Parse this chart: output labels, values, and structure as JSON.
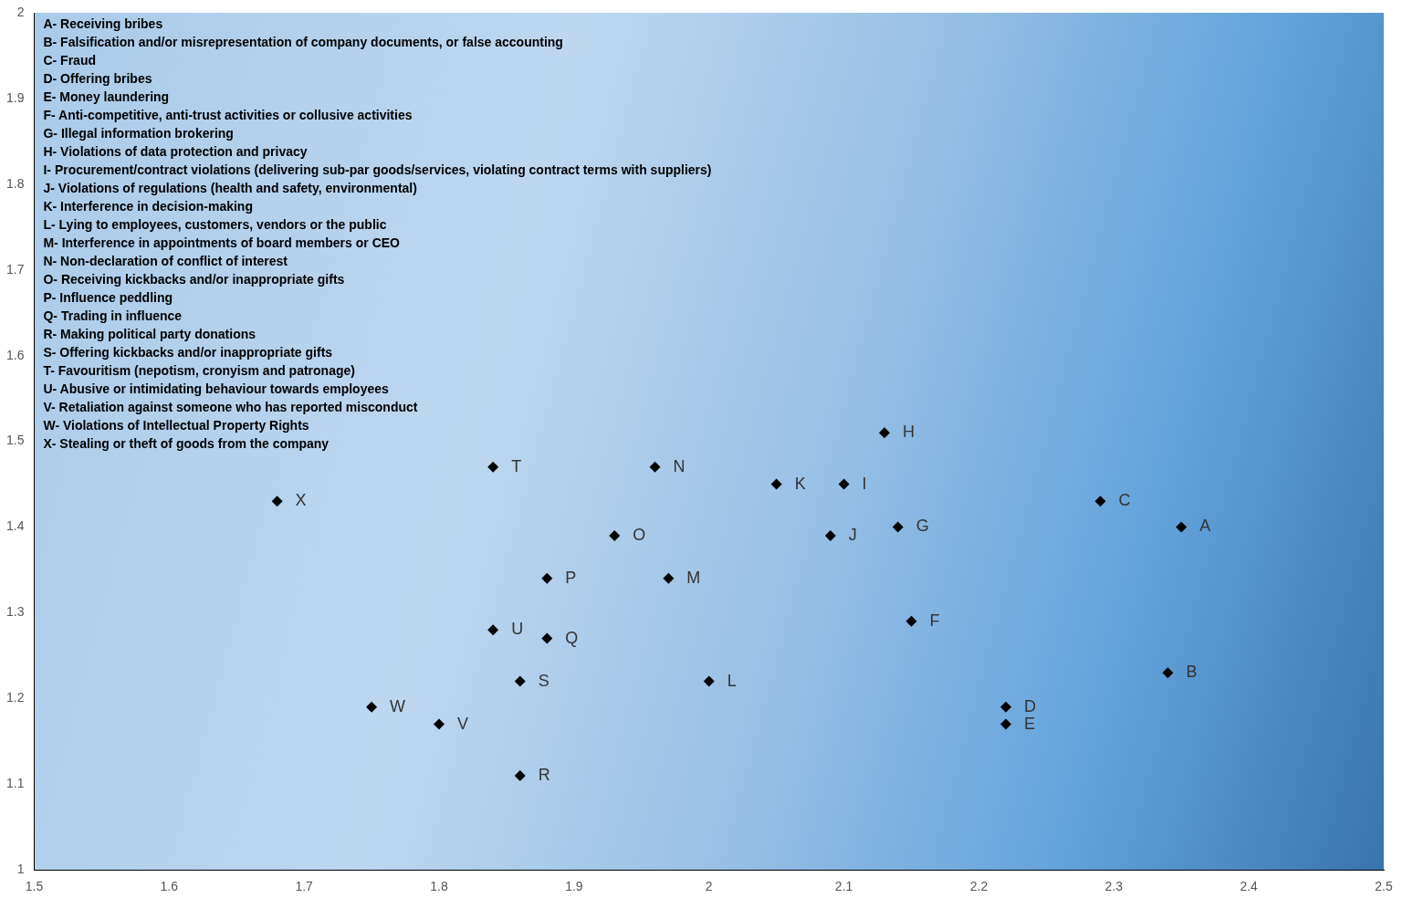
{
  "chart_data": {
    "type": "scatter",
    "marker": "diamond",
    "legend": false,
    "grid": false,
    "xlim": [
      1.5,
      2.5
    ],
    "xticks": [
      1.5,
      1.6,
      1.7,
      1.8,
      1.9,
      2,
      2.1,
      2.2,
      2.3,
      2.4,
      2.5
    ],
    "ylim": [
      1,
      2
    ],
    "yticks": [
      1,
      1.1,
      1.2,
      1.3,
      1.4,
      1.5,
      1.6,
      1.7,
      1.8,
      1.9,
      2
    ],
    "series": [
      {
        "color": "#000000",
        "x": [
          2.35,
          2.34,
          2.29,
          2.22,
          2.22,
          2.15,
          2.14,
          2.13,
          2.1,
          2.09,
          2.05,
          2.0,
          1.97,
          1.96,
          1.93,
          1.88,
          1.88,
          1.86,
          1.86,
          1.84,
          1.84,
          1.8,
          1.75,
          1.68
        ],
        "values": [
          1.4,
          1.23,
          1.43,
          1.19,
          1.17,
          1.29,
          1.4,
          1.51,
          1.45,
          1.39,
          1.45,
          1.22,
          1.34,
          1.47,
          1.39,
          1.34,
          1.27,
          1.11,
          1.22,
          1.47,
          1.28,
          1.17,
          1.19,
          1.43
        ]
      }
    ],
    "annotations": [
      "A- Receiving bribes",
      "B- Falsification and/or misrepresentation of company documents, or false accounting",
      "C- Fraud",
      "D- Offering bribes",
      "E- Money laundering",
      "F- Anti-competitive, anti-trust activities or collusive activities",
      "G- Illegal information brokering",
      "H- Violations of data protection and privacy",
      "I- Procurement/contract violations (delivering sub-par goods/services, violating contract terms with suppliers)",
      "J- Violations of regulations (health and safety, environmental)",
      "K- Interference in decision-making",
      "L- Lying to employees, customers, vendors or the public",
      "M- Interference in appointments of board members or CEO",
      "N- Non-declaration of conflict of interest",
      "O- Receiving kickbacks and/or inappropriate gifts",
      "P- Influence peddling",
      "Q- Trading in influence",
      "R- Making political party donations",
      "S- Offering kickbacks and/or inappropriate gifts",
      "T- Favouritism (nepotism, cronyism and patronage)",
      "U- Abusive or intimidating behaviour towards employees",
      "V- Retaliation against someone who has reported misconduct",
      "W- Violations of Intellectual Property Rights",
      "X- Stealing or theft of goods from the company",
      {
        "text": "A",
        "x": 2.35,
        "y": 1.4
      },
      {
        "text": "B",
        "x": 2.34,
        "y": 1.23
      },
      {
        "text": "C",
        "x": 2.29,
        "y": 1.43
      },
      {
        "text": "D",
        "x": 2.22,
        "y": 1.19
      },
      {
        "text": "E",
        "x": 2.22,
        "y": 1.17
      },
      {
        "text": "F",
        "x": 2.15,
        "y": 1.29
      },
      {
        "text": "G",
        "x": 2.14,
        "y": 1.4
      },
      {
        "text": "H",
        "x": 2.13,
        "y": 1.51
      },
      {
        "text": "I",
        "x": 2.1,
        "y": 1.45
      },
      {
        "text": "J",
        "x": 2.09,
        "y": 1.39
      },
      {
        "text": "K",
        "x": 2.05,
        "y": 1.45
      },
      {
        "text": "L",
        "x": 2.0,
        "y": 1.22
      },
      {
        "text": "M",
        "x": 1.97,
        "y": 1.34
      },
      {
        "text": "N",
        "x": 1.96,
        "y": 1.47
      },
      {
        "text": "O",
        "x": 1.93,
        "y": 1.39
      },
      {
        "text": "P",
        "x": 1.88,
        "y": 1.34
      },
      {
        "text": "Q",
        "x": 1.88,
        "y": 1.27
      },
      {
        "text": "R",
        "x": 1.86,
        "y": 1.11
      },
      {
        "text": "S",
        "x": 1.86,
        "y": 1.22
      },
      {
        "text": "T",
        "x": 1.84,
        "y": 1.47
      },
      {
        "text": "U",
        "x": 1.84,
        "y": 1.28
      },
      {
        "text": "V",
        "x": 1.8,
        "y": 1.17
      },
      {
        "text": "W",
        "x": 1.75,
        "y": 1.19
      },
      {
        "text": "X",
        "x": 1.68,
        "y": 1.43
      }
    ]
  }
}
